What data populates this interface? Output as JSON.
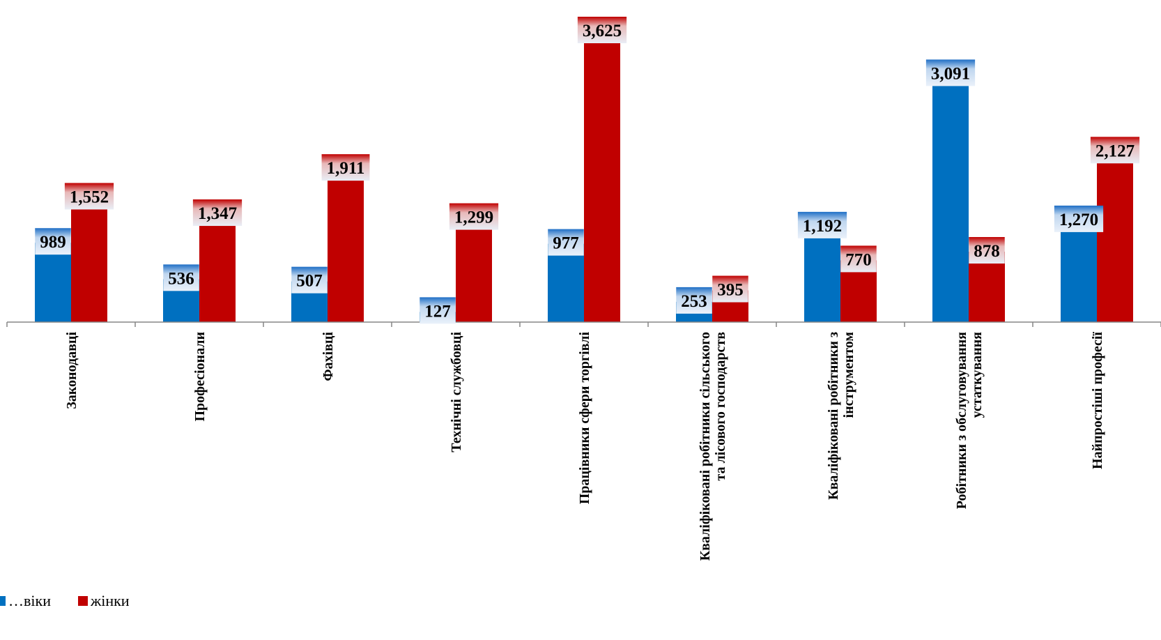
{
  "chart_data": {
    "type": "bar",
    "categories": [
      [
        "Законодавці"
      ],
      [
        "Професіонали"
      ],
      [
        "Фахівці"
      ],
      [
        "Технічні службовці"
      ],
      [
        "Працівники сфери торгівлі"
      ],
      [
        "Кваліфіковані робітники сільського",
        "та лісового господарств"
      ],
      [
        "Кваліфіковані робітники з",
        "інструментом"
      ],
      [
        "Робітники  з обслуговування",
        "устаткування"
      ],
      [
        "Найпростіші професії"
      ]
    ],
    "series": [
      {
        "name": "…віки",
        "color": "#0070C0",
        "values": [
          989,
          536,
          507,
          127,
          977,
          253,
          1192,
          3091,
          1270
        ],
        "labels": [
          "989",
          "536",
          "507",
          "127",
          "977",
          "253",
          "1,192",
          "3,091",
          "1,270"
        ]
      },
      {
        "name": "жінки",
        "color": "#C00000",
        "values": [
          1552,
          1347,
          1911,
          1299,
          3625,
          395,
          770,
          878,
          2127
        ],
        "labels": [
          "1,552",
          "1,347",
          "1,911",
          "1,299",
          "3,625",
          "395",
          "770",
          "878",
          "2,127"
        ]
      }
    ],
    "ylim": [
      0,
      3625
    ],
    "grid": false,
    "legend_position": "bottom-left"
  }
}
